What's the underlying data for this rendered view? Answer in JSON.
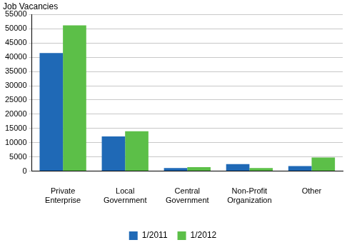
{
  "chart_data": {
    "type": "bar",
    "y_label": "Job Vacancies",
    "categories": [
      "Private Enterprise",
      "Local Government",
      "Central Government",
      "Non-Profit Organization",
      "Other"
    ],
    "series": [
      {
        "name": "1/2011",
        "color": "#1f69b6",
        "values": [
          41500,
          12200,
          1100,
          2500,
          1800
        ]
      },
      {
        "name": "1/2012",
        "color": "#5cbf48",
        "values": [
          51200,
          14000,
          1400,
          1100,
          4800
        ]
      }
    ],
    "ylim": [
      0,
      55000
    ],
    "yticks": [
      0,
      5000,
      10000,
      15000,
      20000,
      25000,
      30000,
      35000,
      40000,
      45000,
      50000,
      55000
    ],
    "grid": true,
    "legend": "bottom"
  }
}
